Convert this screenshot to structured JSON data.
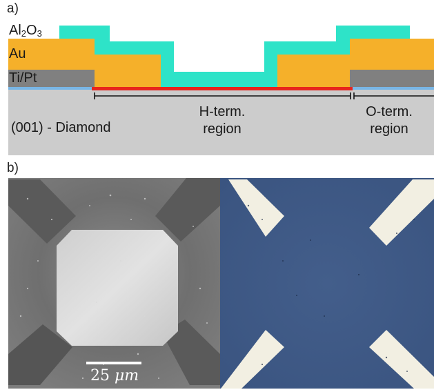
{
  "panels": {
    "a": "a)",
    "b": "b)"
  },
  "layers": {
    "al2o3": {
      "prefix": "Al",
      "sub1": "2",
      "mid": "O",
      "sub2": "3"
    },
    "au": "Au",
    "tipt": "Ti/Pt",
    "substrate": "(001) - Diamond"
  },
  "regions": {
    "h_term": [
      "H-term.",
      "region"
    ],
    "o_term": [
      "O-term.",
      "region"
    ]
  },
  "scale_bar": {
    "value": "25",
    "unit": "μm"
  },
  "colors": {
    "al2o3": "#2ee3c8",
    "au": "#f5b02a",
    "tipt": "#808080",
    "diamond": "#cccccc",
    "h_term_layer": "#e8241c",
    "o_term_layer": "#79b6e6",
    "optical_bg": "#3f5a86",
    "electrode_light": "#f2efe2"
  }
}
